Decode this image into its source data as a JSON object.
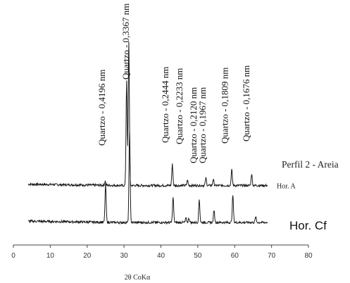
{
  "chart_data": {
    "type": "line",
    "title": "",
    "xlabel": "2θ CoKα",
    "ylabel": "",
    "xlim": [
      0,
      80
    ],
    "xticks": [
      0,
      10,
      20,
      30,
      40,
      50,
      60,
      70,
      80
    ],
    "grid": false,
    "caption": "Perfil 2 - Areia",
    "series": [
      {
        "name": "Hor. A",
        "baseline": 0.35,
        "peaks": [
          {
            "x": 24.9,
            "y": 0.04
          },
          {
            "x": 30.7,
            "y": 1.0
          },
          {
            "x": 31.3,
            "y": 1.36
          },
          {
            "x": 43.1,
            "y": 0.2
          },
          {
            "x": 47.2,
            "y": 0.05
          },
          {
            "x": 52.2,
            "y": 0.07
          },
          {
            "x": 54.2,
            "y": 0.06
          },
          {
            "x": 59.2,
            "y": 0.15
          },
          {
            "x": 64.6,
            "y": 0.11
          }
        ]
      },
      {
        "name": "Hor. Cf",
        "baseline": 0.0,
        "peaks": [
          {
            "x": 25.0,
            "y": 0.36
          },
          {
            "x": 31.5,
            "y": 0.86
          },
          {
            "x": 43.3,
            "y": 0.24
          },
          {
            "x": 46.8,
            "y": 0.04
          },
          {
            "x": 47.6,
            "y": 0.04
          },
          {
            "x": 50.4,
            "y": 0.22
          },
          {
            "x": 54.4,
            "y": 0.12
          },
          {
            "x": 59.5,
            "y": 0.26
          },
          {
            "x": 65.7,
            "y": 0.05
          }
        ]
      }
    ],
    "annotations": [
      {
        "label": "Quartzo - 0,4196 nm",
        "x": 25.0
      },
      {
        "label": "Quartzo - 0,3367 nm",
        "x": 31.5
      },
      {
        "label": "Quartzo - 0,2444 nm",
        "x": 42.2
      },
      {
        "label": "Quartzo - 0,2233 nm",
        "x": 46.0
      },
      {
        "label": "Quartzo - 0,2120 nm",
        "x": 49.8
      },
      {
        "label": "Quartzo - 0,1967 nm",
        "x": 52.3
      },
      {
        "label": "Quartzo - 0,1809 nm",
        "x": 58.3
      },
      {
        "label": "Quartzo - 0,1676 nm",
        "x": 64.2
      }
    ]
  }
}
